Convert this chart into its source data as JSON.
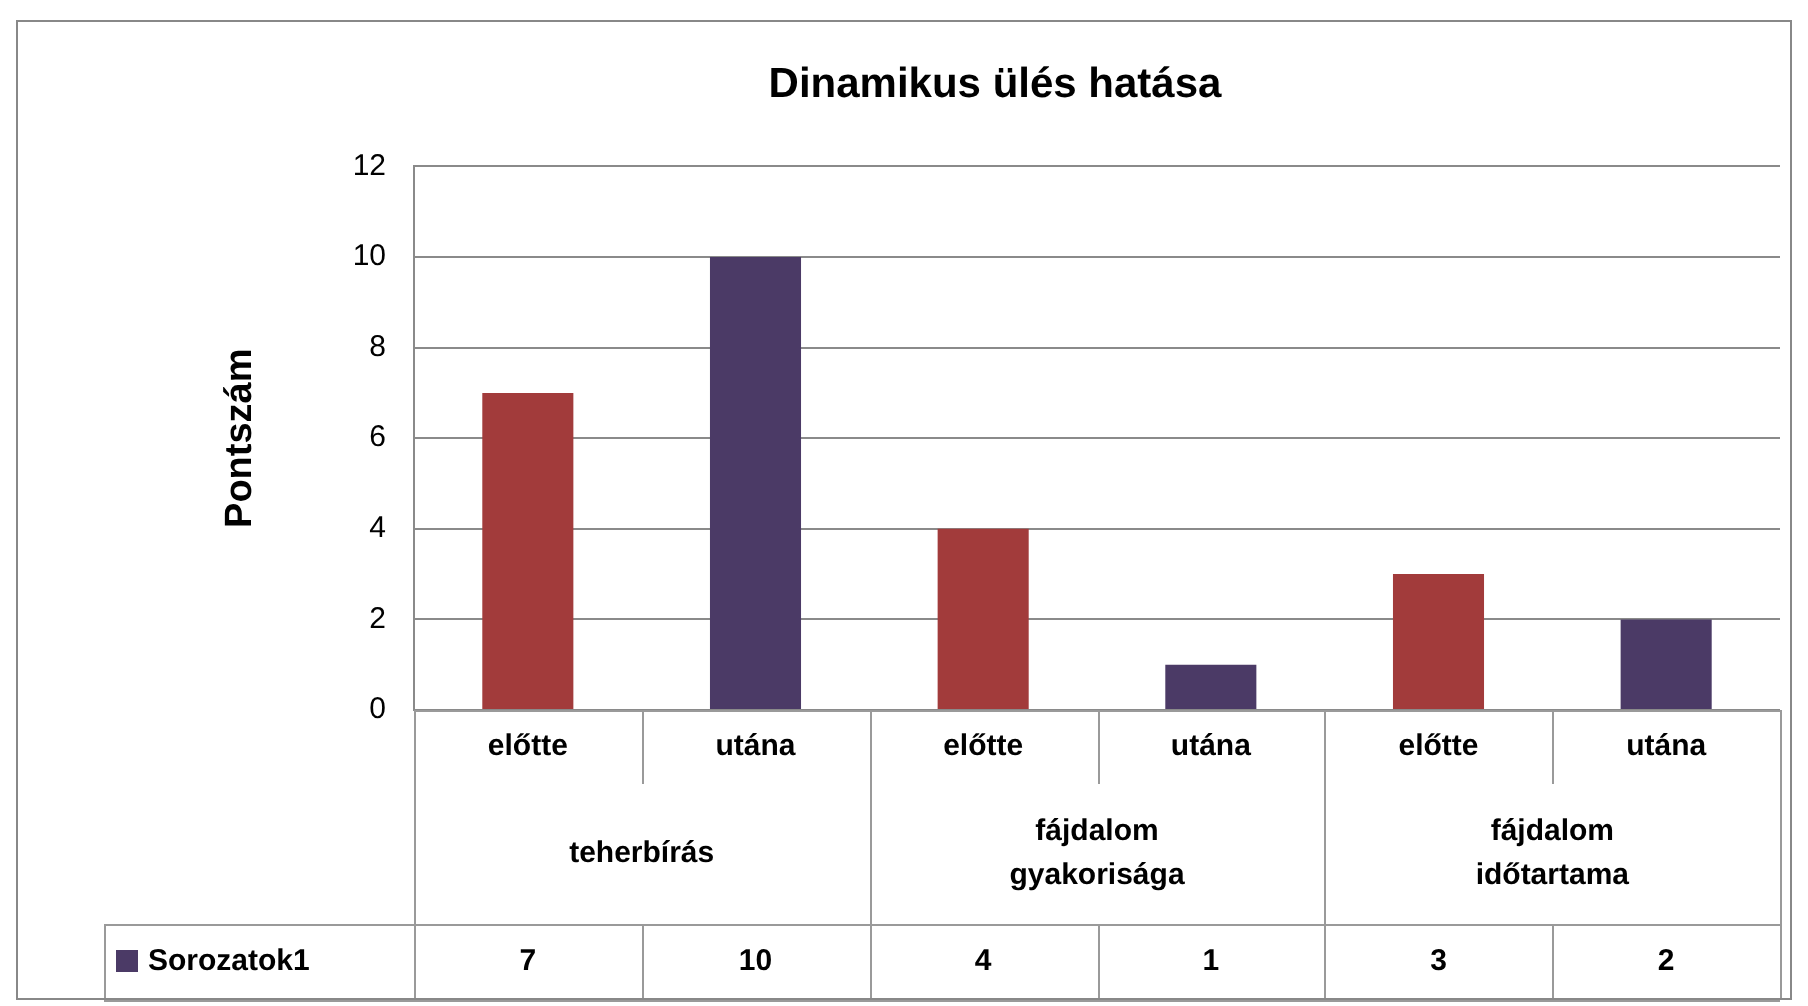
{
  "chart_data": {
    "type": "bar",
    "title": "Dinamikus ülés hatása",
    "ylabel": "Pontszám",
    "categories": [
      "előtte",
      "utána",
      "előtte",
      "utána",
      "előtte",
      "utána"
    ],
    "annotations": [
      "teherbírás",
      "fájdalom gyakorisága",
      "fájdalom időtartama"
    ],
    "series": [
      {
        "name": "Sorozatok1",
        "color": "#4b3a66",
        "colors": [
          "#a23b3b",
          "#4b3a66",
          "#a23b3b",
          "#4b3a66",
          "#a23b3b",
          "#4b3a66"
        ],
        "values": [
          7,
          10,
          4,
          1,
          3,
          2
        ]
      }
    ],
    "ylim": [
      0,
      12
    ],
    "yticks": [
      0,
      2,
      4,
      6,
      8,
      10,
      12
    ],
    "grid": "y",
    "legend": "bottom",
    "data_labels": true
  }
}
